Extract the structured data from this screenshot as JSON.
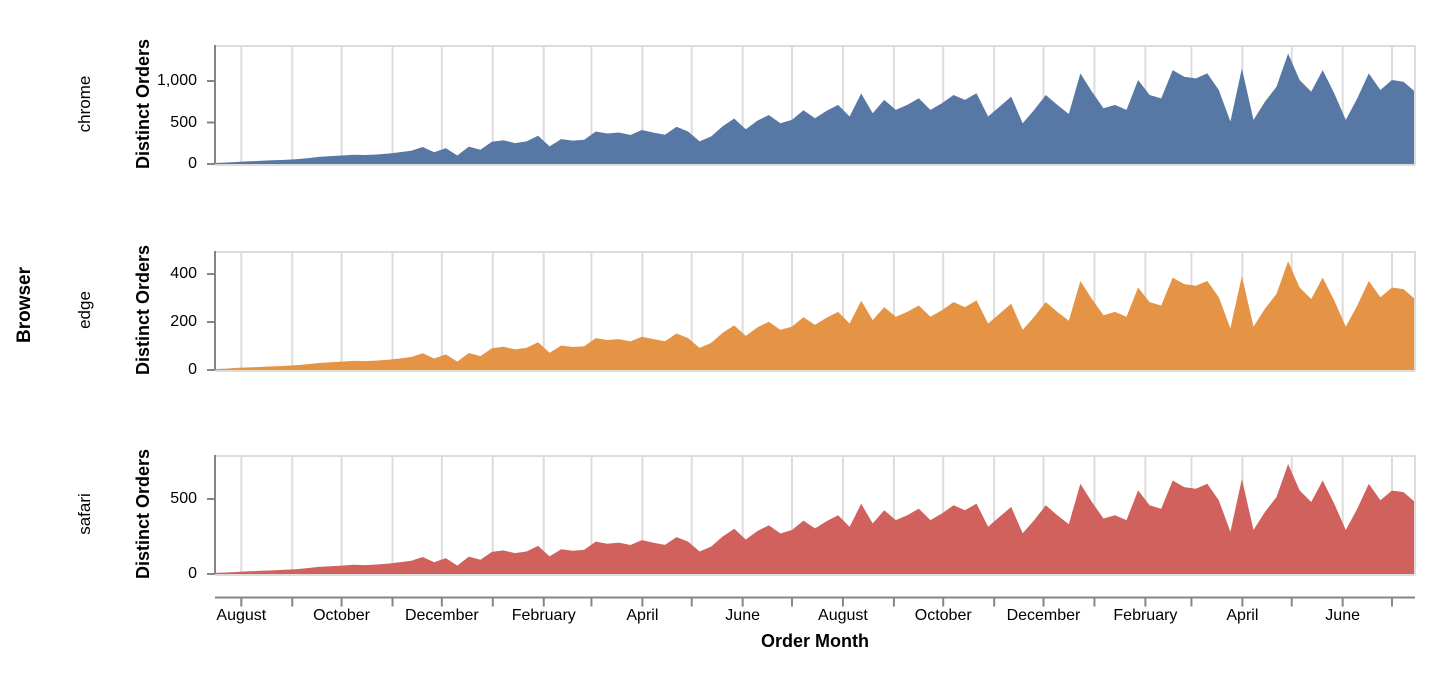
{
  "chart_data": {
    "type": "area",
    "facet_title": "Browser",
    "xlabel": "Order Month",
    "ylabel": "Distinct Orders",
    "x_tick_labels": [
      "August",
      "October",
      "December",
      "February",
      "April",
      "June",
      "August",
      "October",
      "December",
      "February",
      "April",
      "June"
    ],
    "x_range_weeks": 105,
    "grid": true,
    "facets": [
      {
        "label": "chrome",
        "color": "#5778a4",
        "y_ticks": [
          0,
          500,
          1000
        ],
        "y_tick_labels": [
          "0",
          "500",
          "1,000"
        ],
        "ylim": [
          0,
          1434
        ],
        "values": [
          12,
          18,
          25,
          32,
          38,
          44,
          50,
          58,
          70,
          85,
          95,
          102,
          112,
          108,
          115,
          125,
          142,
          160,
          205,
          142,
          192,
          102,
          210,
          172,
          268,
          285,
          252,
          272,
          340,
          212,
          300,
          282,
          292,
          392,
          368,
          380,
          350,
          410,
          378,
          352,
          448,
          392,
          272,
          332,
          455,
          548,
          418,
          520,
          590,
          490,
          532,
          648,
          552,
          640,
          712,
          572,
          850,
          612,
          772,
          652,
          712,
          792,
          652,
          732,
          832,
          772,
          852,
          572,
          692,
          812,
          492,
          652,
          832,
          712,
          602,
          1092,
          872,
          672,
          712,
          652,
          1012,
          832,
          790,
          1132,
          1052,
          1032,
          1092,
          892,
          512,
          1152,
          532,
          752,
          932,
          1332,
          1012,
          872,
          1132,
          852,
          532,
          792,
          1092,
          892,
          1012,
          992,
          872
        ]
      },
      {
        "label": "edge",
        "color": "#e49444",
        "y_ticks": [
          0,
          200,
          400
        ],
        "y_tick_labels": [
          "0",
          "200",
          "400"
        ],
        "ylim": [
          0,
          496
        ],
        "values": [
          4,
          6,
          9,
          11,
          13,
          15,
          17,
          20,
          24,
          29,
          32,
          35,
          38,
          37,
          39,
          43,
          48,
          54,
          70,
          48,
          65,
          35,
          71,
          58,
          91,
          97,
          86,
          92,
          116,
          72,
          102,
          96,
          99,
          133,
          125,
          129,
          119,
          139,
          129,
          120,
          152,
          133,
          92,
          113,
          155,
          186,
          142,
          177,
          201,
          167,
          181,
          220,
          188,
          218,
          242,
          194,
          289,
          208,
          262,
          222,
          242,
          269,
          222,
          249,
          283,
          262,
          290,
          194,
          235,
          276,
          167,
          222,
          283,
          242,
          205,
          371,
          296,
          228,
          242,
          222,
          344,
          283,
          269,
          385,
          358,
          351,
          371,
          303,
          174,
          392,
          181,
          256,
          317,
          453,
          344,
          296,
          385,
          290,
          181,
          269,
          371,
          303,
          344,
          337,
          296
        ]
      },
      {
        "label": "safari",
        "color": "#d1615d",
        "y_ticks": [
          0,
          500
        ],
        "y_tick_labels": [
          "0",
          "500"
        ],
        "ylim": [
          0,
          793
        ],
        "values": [
          7,
          10,
          14,
          18,
          21,
          24,
          28,
          32,
          39,
          47,
          52,
          56,
          62,
          59,
          63,
          69,
          78,
          88,
          113,
          78,
          106,
          56,
          116,
          95,
          147,
          157,
          139,
          150,
          187,
          117,
          165,
          155,
          161,
          216,
          202,
          209,
          193,
          226,
          208,
          194,
          246,
          216,
          150,
          183,
          250,
          301,
          230,
          286,
          325,
          270,
          293,
          356,
          304,
          352,
          392,
          315,
          468,
          337,
          425,
          359,
          392,
          436,
          359,
          403,
          458,
          425,
          469,
          315,
          381,
          447,
          271,
          359,
          458,
          392,
          331,
          601,
          480,
          370,
          392,
          359,
          557,
          458,
          435,
          623,
          579,
          568,
          601,
          491,
          282,
          634,
          293,
          414,
          513,
          733,
          557,
          480,
          623,
          469,
          293,
          436,
          601,
          491,
          556,
          546,
          480
        ]
      }
    ],
    "colors": {
      "gridline": "#dcdcdc",
      "axis": "#858585",
      "text": "#000000",
      "background": "#ffffff"
    }
  }
}
